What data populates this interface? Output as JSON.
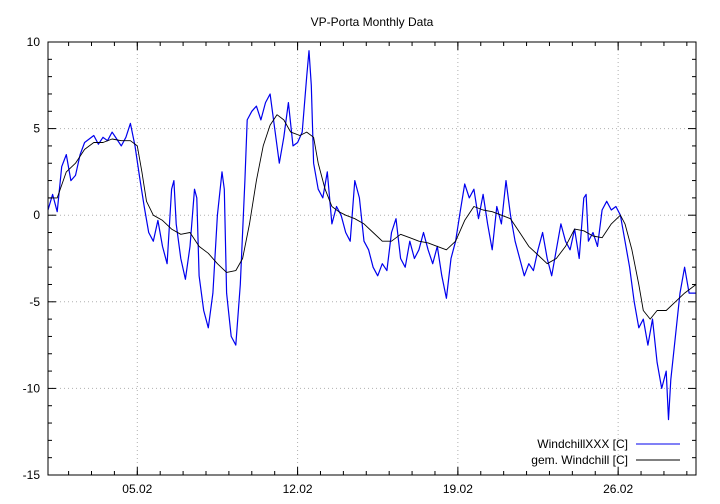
{
  "chart_data": {
    "type": "line",
    "title": "VP-Porta Monthly Data",
    "xlabel": "",
    "ylabel": "",
    "xlim": [
      0,
      28.3
    ],
    "ylim": [
      -15,
      10
    ],
    "y_ticks": [
      10,
      5,
      0,
      -5,
      -10,
      -15
    ],
    "x_ticks": [
      {
        "value": 3.9,
        "label": "05.02"
      },
      {
        "value": 10.9,
        "label": "12.02"
      },
      {
        "value": 17.9,
        "label": "19.02"
      },
      {
        "value": 24.9,
        "label": "26.02"
      }
    ],
    "grid": true,
    "legend_position": "bottom-right",
    "series": [
      {
        "name": "WindchillXXX [C]",
        "color": "#0000ee",
        "points": [
          [
            0.0,
            0.3
          ],
          [
            0.2,
            1.2
          ],
          [
            0.4,
            0.2
          ],
          [
            0.6,
            2.8
          ],
          [
            0.8,
            3.5
          ],
          [
            1.0,
            2.0
          ],
          [
            1.2,
            2.3
          ],
          [
            1.4,
            3.5
          ],
          [
            1.6,
            4.2
          ],
          [
            1.8,
            4.4
          ],
          [
            2.0,
            4.6
          ],
          [
            2.2,
            4.1
          ],
          [
            2.4,
            4.5
          ],
          [
            2.6,
            4.3
          ],
          [
            2.8,
            4.8
          ],
          [
            3.0,
            4.4
          ],
          [
            3.2,
            4.0
          ],
          [
            3.4,
            4.5
          ],
          [
            3.6,
            5.3
          ],
          [
            3.8,
            4.0
          ],
          [
            4.0,
            2.2
          ],
          [
            4.2,
            0.5
          ],
          [
            4.4,
            -1.0
          ],
          [
            4.6,
            -1.5
          ],
          [
            4.8,
            -0.3
          ],
          [
            5.0,
            -1.8
          ],
          [
            5.2,
            -2.8
          ],
          [
            5.4,
            1.5
          ],
          [
            5.5,
            2.0
          ],
          [
            5.6,
            -0.5
          ],
          [
            5.8,
            -2.5
          ],
          [
            6.0,
            -3.7
          ],
          [
            6.2,
            -1.8
          ],
          [
            6.4,
            1.5
          ],
          [
            6.5,
            1.0
          ],
          [
            6.6,
            -3.5
          ],
          [
            6.8,
            -5.5
          ],
          [
            7.0,
            -6.5
          ],
          [
            7.2,
            -4.5
          ],
          [
            7.4,
            0.0
          ],
          [
            7.6,
            2.5
          ],
          [
            7.7,
            1.5
          ],
          [
            7.8,
            -4.5
          ],
          [
            8.0,
            -7.0
          ],
          [
            8.2,
            -7.5
          ],
          [
            8.4,
            -4.0
          ],
          [
            8.6,
            2.0
          ],
          [
            8.7,
            5.5
          ],
          [
            8.9,
            6.0
          ],
          [
            9.1,
            6.3
          ],
          [
            9.3,
            5.5
          ],
          [
            9.5,
            6.5
          ],
          [
            9.7,
            7.0
          ],
          [
            9.9,
            5.0
          ],
          [
            10.1,
            3.0
          ],
          [
            10.3,
            4.5
          ],
          [
            10.5,
            6.5
          ],
          [
            10.7,
            4.0
          ],
          [
            10.9,
            4.2
          ],
          [
            11.1,
            4.8
          ],
          [
            11.3,
            8.0
          ],
          [
            11.4,
            9.5
          ],
          [
            11.5,
            7.5
          ],
          [
            11.6,
            3.0
          ],
          [
            11.8,
            1.5
          ],
          [
            12.0,
            1.0
          ],
          [
            12.2,
            2.5
          ],
          [
            12.4,
            -0.5
          ],
          [
            12.6,
            0.5
          ],
          [
            12.8,
            0.0
          ],
          [
            13.0,
            -1.0
          ],
          [
            13.2,
            -1.5
          ],
          [
            13.4,
            2.0
          ],
          [
            13.6,
            1.0
          ],
          [
            13.8,
            -1.5
          ],
          [
            14.0,
            -2.0
          ],
          [
            14.2,
            -3.0
          ],
          [
            14.4,
            -3.5
          ],
          [
            14.6,
            -2.8
          ],
          [
            14.8,
            -3.2
          ],
          [
            15.0,
            -1.0
          ],
          [
            15.2,
            -0.2
          ],
          [
            15.4,
            -2.5
          ],
          [
            15.6,
            -3.0
          ],
          [
            15.8,
            -1.5
          ],
          [
            16.0,
            -2.5
          ],
          [
            16.2,
            -2.0
          ],
          [
            16.4,
            -1.0
          ],
          [
            16.6,
            -2.0
          ],
          [
            16.8,
            -2.8
          ],
          [
            17.0,
            -1.8
          ],
          [
            17.2,
            -3.5
          ],
          [
            17.4,
            -4.8
          ],
          [
            17.6,
            -2.5
          ],
          [
            17.8,
            -1.5
          ],
          [
            18.0,
            0.2
          ],
          [
            18.2,
            1.8
          ],
          [
            18.4,
            1.0
          ],
          [
            18.6,
            1.5
          ],
          [
            18.8,
            -0.2
          ],
          [
            19.0,
            1.2
          ],
          [
            19.2,
            -0.5
          ],
          [
            19.4,
            -2.0
          ],
          [
            19.6,
            0.5
          ],
          [
            19.8,
            -0.5
          ],
          [
            20.0,
            2.0
          ],
          [
            20.2,
            0.0
          ],
          [
            20.4,
            -1.5
          ],
          [
            20.6,
            -2.5
          ],
          [
            20.8,
            -3.5
          ],
          [
            21.0,
            -2.8
          ],
          [
            21.2,
            -3.2
          ],
          [
            21.4,
            -2.0
          ],
          [
            21.6,
            -1.0
          ],
          [
            21.8,
            -2.5
          ],
          [
            22.0,
            -3.5
          ],
          [
            22.2,
            -2.0
          ],
          [
            22.4,
            -0.5
          ],
          [
            22.6,
            -1.5
          ],
          [
            22.8,
            -2.0
          ],
          [
            23.0,
            -0.8
          ],
          [
            23.2,
            -2.5
          ],
          [
            23.4,
            1.0
          ],
          [
            23.5,
            1.2
          ],
          [
            23.6,
            -1.5
          ],
          [
            23.8,
            -1.0
          ],
          [
            24.0,
            -1.8
          ],
          [
            24.2,
            0.3
          ],
          [
            24.4,
            0.8
          ],
          [
            24.6,
            0.3
          ],
          [
            24.8,
            0.5
          ],
          [
            25.0,
            0.0
          ],
          [
            25.2,
            -1.5
          ],
          [
            25.4,
            -3.0
          ],
          [
            25.6,
            -5.0
          ],
          [
            25.8,
            -6.5
          ],
          [
            26.0,
            -6.0
          ],
          [
            26.2,
            -7.5
          ],
          [
            26.4,
            -6.0
          ],
          [
            26.6,
            -8.5
          ],
          [
            26.8,
            -10.0
          ],
          [
            27.0,
            -9.0
          ],
          [
            27.1,
            -11.8
          ],
          [
            27.2,
            -9.5
          ],
          [
            27.4,
            -7.0
          ],
          [
            27.6,
            -4.5
          ],
          [
            27.8,
            -3.0
          ],
          [
            28.0,
            -4.5
          ],
          [
            28.3,
            -4.5
          ]
        ]
      },
      {
        "name": "gem. Windchill [C]",
        "color": "#000000",
        "points": [
          [
            0.0,
            1.0
          ],
          [
            0.4,
            1.0
          ],
          [
            0.8,
            2.5
          ],
          [
            1.2,
            3.0
          ],
          [
            1.6,
            3.8
          ],
          [
            2.0,
            4.2
          ],
          [
            2.4,
            4.2
          ],
          [
            2.8,
            4.4
          ],
          [
            3.2,
            4.3
          ],
          [
            3.6,
            4.3
          ],
          [
            3.9,
            4.0
          ],
          [
            4.1,
            2.5
          ],
          [
            4.3,
            0.8
          ],
          [
            4.6,
            0.0
          ],
          [
            5.0,
            -0.3
          ],
          [
            5.4,
            -0.8
          ],
          [
            5.8,
            -1.1
          ],
          [
            6.2,
            -1.0
          ],
          [
            6.6,
            -1.8
          ],
          [
            7.0,
            -2.2
          ],
          [
            7.4,
            -2.8
          ],
          [
            7.8,
            -3.3
          ],
          [
            8.2,
            -3.2
          ],
          [
            8.5,
            -2.5
          ],
          [
            8.8,
            -0.5
          ],
          [
            9.1,
            2.0
          ],
          [
            9.4,
            4.0
          ],
          [
            9.7,
            5.2
          ],
          [
            10.0,
            5.8
          ],
          [
            10.3,
            5.5
          ],
          [
            10.6,
            4.8
          ],
          [
            11.0,
            4.6
          ],
          [
            11.3,
            4.8
          ],
          [
            11.6,
            4.5
          ],
          [
            11.8,
            3.0
          ],
          [
            12.1,
            1.5
          ],
          [
            12.4,
            0.5
          ],
          [
            12.7,
            0.2
          ],
          [
            13.0,
            0.0
          ],
          [
            13.4,
            -0.2
          ],
          [
            13.8,
            -0.5
          ],
          [
            14.2,
            -1.0
          ],
          [
            14.6,
            -1.5
          ],
          [
            15.0,
            -1.5
          ],
          [
            15.4,
            -1.1
          ],
          [
            15.8,
            -1.3
          ],
          [
            16.2,
            -1.5
          ],
          [
            16.6,
            -1.6
          ],
          [
            17.0,
            -1.8
          ],
          [
            17.4,
            -2.0
          ],
          [
            17.8,
            -1.5
          ],
          [
            18.2,
            -0.3
          ],
          [
            18.6,
            0.5
          ],
          [
            19.0,
            0.3
          ],
          [
            19.4,
            0.2
          ],
          [
            19.8,
            0.0
          ],
          [
            20.2,
            -0.2
          ],
          [
            20.6,
            -1.0
          ],
          [
            21.0,
            -1.8
          ],
          [
            21.4,
            -2.3
          ],
          [
            21.8,
            -2.8
          ],
          [
            22.2,
            -2.5
          ],
          [
            22.6,
            -1.8
          ],
          [
            23.0,
            -0.8
          ],
          [
            23.4,
            -0.9
          ],
          [
            23.8,
            -1.2
          ],
          [
            24.2,
            -1.3
          ],
          [
            24.6,
            -0.5
          ],
          [
            25.0,
            0.0
          ],
          [
            25.2,
            -0.5
          ],
          [
            25.5,
            -2.0
          ],
          [
            25.8,
            -4.0
          ],
          [
            26.0,
            -5.5
          ],
          [
            26.3,
            -6.0
          ],
          [
            26.6,
            -5.5
          ],
          [
            27.0,
            -5.5
          ],
          [
            27.4,
            -5.0
          ],
          [
            27.8,
            -4.5
          ],
          [
            28.3,
            -4.0
          ]
        ]
      }
    ]
  }
}
